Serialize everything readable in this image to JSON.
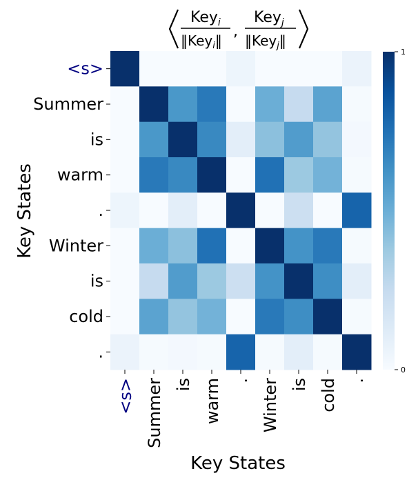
{
  "chart_data": {
    "type": "heatmap",
    "title": {
      "key": "Key",
      "sub_i": "i",
      "sub_j": "j"
    },
    "xlabel": "Key States",
    "ylabel": "Key States",
    "x_categories": [
      "<s>",
      "Summer",
      "is",
      "warm",
      ".",
      "Winter",
      "is",
      "cold",
      "."
    ],
    "y_categories": [
      "<s>",
      "Summer",
      "is",
      "warm",
      ".",
      "Winter",
      "is",
      "cold",
      "."
    ],
    "special_token_color": "#000080",
    "colormap": "Blues",
    "vmin": 0,
    "vmax": 1,
    "colorbar_ticks": [
      {
        "value": 1,
        "label": "1"
      },
      {
        "value": 0,
        "label": "0"
      }
    ],
    "values": [
      [
        1.0,
        0.0,
        0.0,
        0.0,
        0.05,
        0.0,
        0.0,
        0.0,
        0.06
      ],
      [
        0.0,
        1.0,
        0.6,
        0.72,
        0.0,
        0.5,
        0.25,
        0.55,
        0.01
      ],
      [
        0.0,
        0.6,
        1.0,
        0.66,
        0.1,
        0.42,
        0.58,
        0.4,
        0.02
      ],
      [
        0.0,
        0.72,
        0.66,
        1.0,
        0.0,
        0.75,
        0.38,
        0.48,
        0.01
      ],
      [
        0.05,
        0.0,
        0.1,
        0.0,
        1.0,
        0.0,
        0.22,
        0.0,
        0.8
      ],
      [
        0.0,
        0.5,
        0.42,
        0.75,
        0.0,
        1.0,
        0.62,
        0.72,
        0.01
      ],
      [
        0.0,
        0.25,
        0.58,
        0.38,
        0.22,
        0.62,
        1.0,
        0.64,
        0.1
      ],
      [
        0.0,
        0.55,
        0.4,
        0.48,
        0.0,
        0.72,
        0.64,
        1.0,
        0.01
      ],
      [
        0.06,
        0.01,
        0.02,
        0.01,
        0.8,
        0.01,
        0.1,
        0.01,
        1.0
      ]
    ]
  }
}
